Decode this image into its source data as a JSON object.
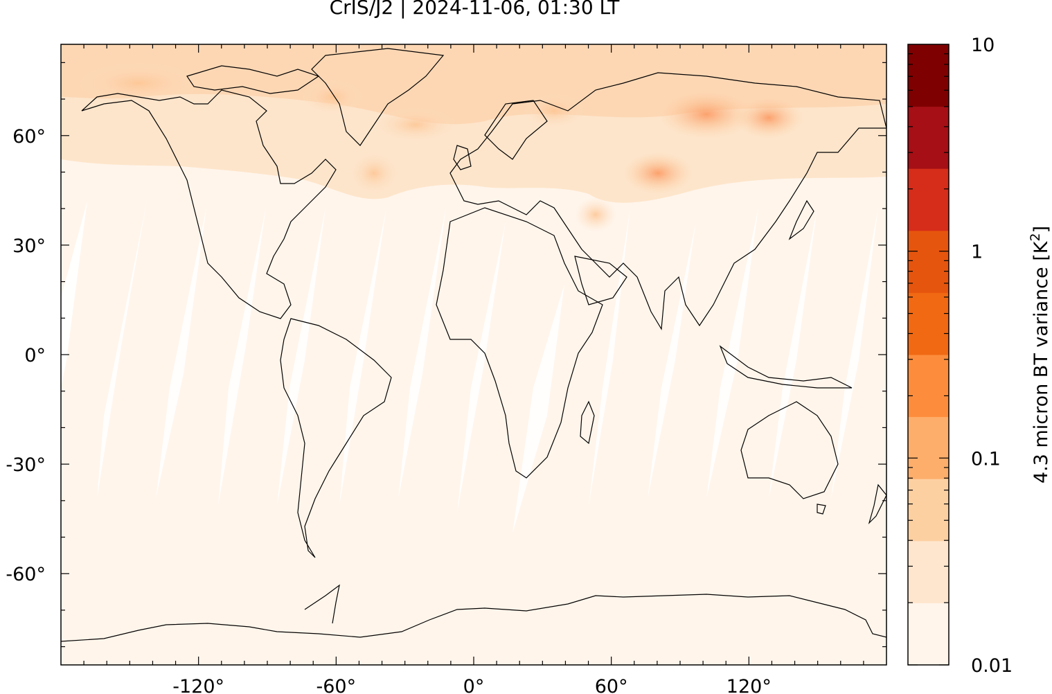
{
  "title": "CrIS/J2 | 2024-11-06, 01:30 LT",
  "map": {
    "lon_range": [
      -180,
      180
    ],
    "lat_range": [
      -85,
      85
    ],
    "x_ticks": [
      {
        "value": -120,
        "label": "-120°"
      },
      {
        "value": -60,
        "label": "-60°"
      },
      {
        "value": 0,
        "label": "0°"
      },
      {
        "value": 60,
        "label": "60°"
      },
      {
        "value": 120,
        "label": "120°"
      }
    ],
    "y_ticks": [
      {
        "value": 60,
        "label": "60°"
      },
      {
        "value": 30,
        "label": "30°"
      },
      {
        "value": 0,
        "label": "0°"
      },
      {
        "value": -30,
        "label": "-30°"
      },
      {
        "value": -60,
        "label": "-60°"
      }
    ],
    "background_color": "#fff5eb"
  },
  "colorbar": {
    "label_main": "4.3 micron BT variance [K",
    "label_sup": "2",
    "label_end": "]",
    "scale": "log",
    "range": [
      0.01,
      10
    ],
    "tick_labels": [
      {
        "value": 10,
        "label": "10"
      },
      {
        "value": 1,
        "label": "1"
      },
      {
        "value": 0.1,
        "label": "0.1"
      },
      {
        "value": 0.01,
        "label": "0.01"
      }
    ],
    "colors": [
      "#fff5eb",
      "#fee6ce",
      "#fdd0a2",
      "#fdae6b",
      "#fd8d3c",
      "#f16913",
      "#e6550d",
      "#d62c1a",
      "#a50f15",
      "#7f0000"
    ]
  }
}
